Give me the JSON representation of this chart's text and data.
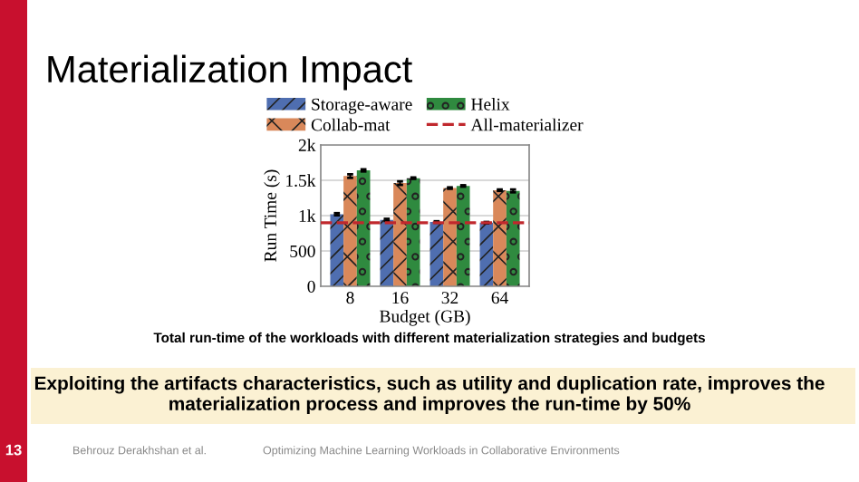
{
  "chart_data": {
    "type": "bar",
    "title": "Materialization Impact",
    "categories": [
      "8",
      "16",
      "32",
      "64"
    ],
    "series": [
      {
        "name": "Storage-aware",
        "color": "#4f6eb0",
        "values": [
          1020,
          940,
          910,
          900
        ],
        "errors": [
          15,
          15,
          10,
          10
        ]
      },
      {
        "name": "Collab-mat",
        "color": "#d9885a",
        "values": [
          1560,
          1460,
          1390,
          1360
        ],
        "errors": [
          25,
          25,
          10,
          10
        ]
      },
      {
        "name": "Helix",
        "color": "#2f8a3f",
        "values": [
          1640,
          1530,
          1420,
          1350
        ],
        "errors": [
          15,
          10,
          10,
          20
        ]
      }
    ],
    "ref_lines": [
      {
        "axis": "y",
        "value": 900,
        "label": "All-materializer",
        "color": "#c0282d",
        "line_style": "dashed"
      }
    ],
    "xlabel": "Budget (GB)",
    "ylabel": "Run Time (s)",
    "ylim": [
      0,
      2000
    ],
    "yticks": [
      0,
      500,
      {
        "value": 1000,
        "label": "1k"
      },
      {
        "value": 1500,
        "label": "1.5k"
      },
      {
        "value": 2000,
        "label": "2k"
      }
    ],
    "grid": "y",
    "legend": "top",
    "annotations": [
      "Total run-time of the workloads with different materialization strategies and budgets",
      "Exploiting the artifacts characteristics, such as utility and duplication rate, improves the materialization process and improves the run-time by 50%",
      "13",
      "Behrouz Derakhshan et al.",
      "Optimizing Machine Learning Workloads in Collaborative Environments"
    ]
  }
}
